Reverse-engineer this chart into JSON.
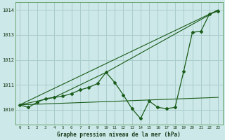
{
  "title": "Graphe pression niveau de la mer (hPa)",
  "bg_color": "#cce8e8",
  "grid_color": "#aacccc",
  "line_color": "#1a5c1a",
  "xlim": [
    -0.5,
    23.5
  ],
  "ylim": [
    1009.4,
    1014.3
  ],
  "yticks": [
    1010,
    1011,
    1012,
    1013,
    1014
  ],
  "xticks": [
    0,
    1,
    2,
    3,
    4,
    5,
    6,
    7,
    8,
    9,
    10,
    11,
    12,
    13,
    14,
    15,
    16,
    17,
    18,
    19,
    20,
    21,
    22,
    23
  ],
  "series_main": {
    "x": [
      0,
      1,
      2,
      3,
      4,
      5,
      6,
      7,
      8,
      9,
      10,
      11,
      12,
      13,
      14,
      15,
      16,
      17,
      18,
      19,
      20,
      21,
      22,
      23
    ],
    "y": [
      1010.2,
      1010.1,
      1010.3,
      1010.45,
      1010.5,
      1010.55,
      1010.65,
      1010.8,
      1010.9,
      1011.05,
      1011.5,
      1011.1,
      1010.6,
      1010.05,
      1009.65,
      1010.35,
      1010.1,
      1010.05,
      1010.1,
      1011.55,
      1013.1,
      1013.15,
      1013.85,
      1013.95
    ]
  },
  "series_diag_top": {
    "x": [
      0,
      23
    ],
    "y": [
      1010.2,
      1014.0
    ]
  },
  "series_flat": {
    "x": [
      0,
      23
    ],
    "y": [
      1010.2,
      1010.5
    ]
  },
  "series_mid": {
    "x": [
      0,
      4,
      10,
      23
    ],
    "y": [
      1010.2,
      1010.5,
      1011.5,
      1014.0
    ]
  }
}
